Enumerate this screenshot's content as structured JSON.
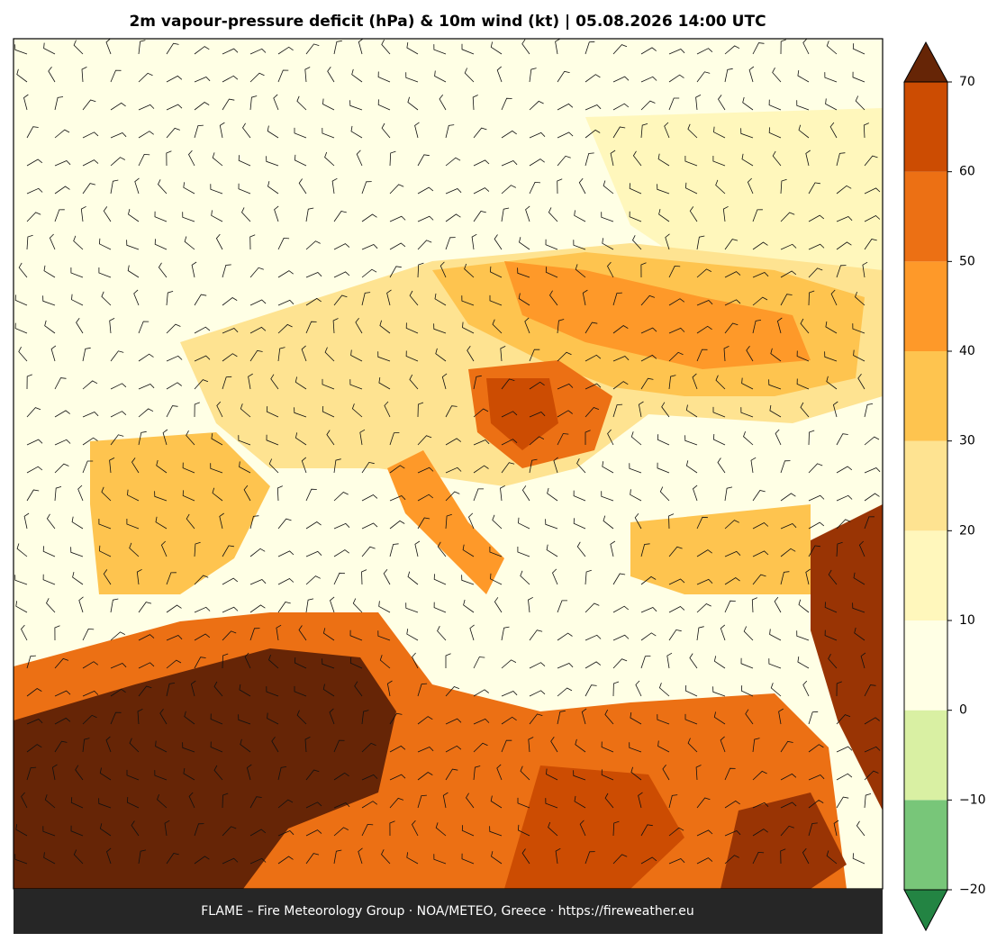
{
  "title": "2m vapour-pressure deficit (hPa) & 10m wind (kt)  |  05.08.2026 14:00 UTC",
  "footer": "FLAME – Fire Meteorology Group · NOA/METEO, Greece · https://fireweather.eu",
  "colorbar": {
    "levels": [
      -20,
      -10,
      0,
      10,
      20,
      30,
      40,
      50,
      60,
      70
    ],
    "colors": [
      "#78c679",
      "#d9f0a3",
      "#ffffe5",
      "#fff7bc",
      "#fee391",
      "#fec44f",
      "#fe9929",
      "#ec7014",
      "#cc4c02"
    ],
    "extend_low_color": "#238443",
    "extend_high_color": "#662506",
    "ticks": [
      {
        "value": -20,
        "label": "−20"
      },
      {
        "value": -10,
        "label": "−10"
      },
      0,
      10,
      20,
      30,
      40,
      50,
      60,
      70
    ]
  }
}
